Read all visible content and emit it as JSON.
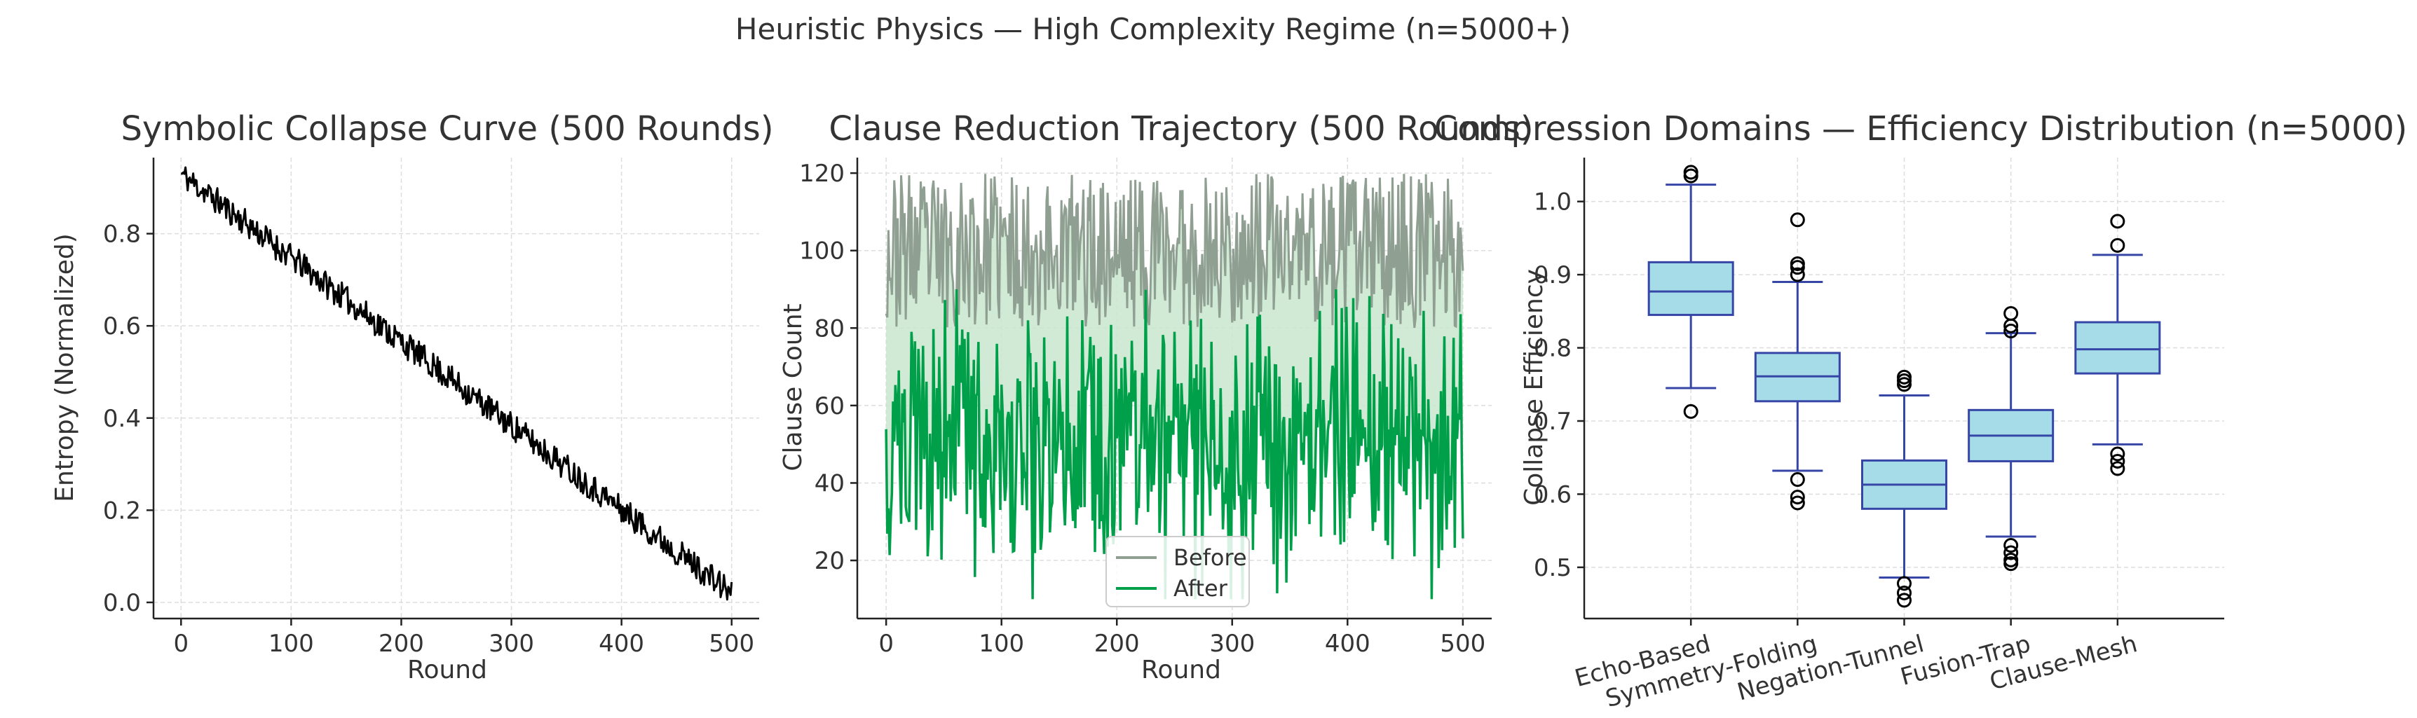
{
  "figure": {
    "suptitle": "Heuristic Physics — High Complexity Regime (n=5000+)"
  },
  "chart_data": [
    {
      "type": "line",
      "title": "Symbolic Collapse Curve (500 Rounds)",
      "xlabel": "Round",
      "ylabel": "Entropy (Normalized)",
      "xlim": [
        -25,
        525
      ],
      "ylim": [
        -0.035,
        0.965
      ],
      "xticks": [
        0,
        100,
        200,
        300,
        400,
        500
      ],
      "yticks": [
        0.0,
        0.2,
        0.4,
        0.6,
        0.8
      ],
      "ytick_labels": [
        "0.0",
        "0.2",
        "0.4",
        "0.6",
        "0.8"
      ],
      "grid": true,
      "series": [
        {
          "color": "#000000",
          "trend": {
            "x_start": 0,
            "x_end": 500,
            "y_start": 0.93,
            "y_end": 0.02
          },
          "noise_amplitude": 0.03,
          "points": 501
        }
      ]
    },
    {
      "type": "line",
      "title": "Clause Reduction Trajectory (500 Rounds)",
      "xlabel": "Round",
      "ylabel": "Clause Count",
      "xlim": [
        -25,
        525
      ],
      "ylim": [
        5,
        124
      ],
      "xticks": [
        0,
        100,
        200,
        300,
        400,
        500
      ],
      "yticks": [
        20,
        40,
        60,
        80,
        100,
        120
      ],
      "grid": true,
      "legend": "lower-center",
      "fill_between": {
        "color": "#c9e6cf"
      },
      "series": [
        {
          "name": "Before",
          "color": "#8f9f91",
          "range": [
            80,
            120
          ],
          "points": 501
        },
        {
          "name": "After",
          "color": "#00a04a",
          "range": [
            10,
            90
          ],
          "mean": 50,
          "points": 501
        }
      ]
    },
    {
      "type": "box",
      "title": "Compression Domains — Efficiency Distribution (n=5000)",
      "xlabel": "",
      "ylabel": "Collapse Efficiency",
      "ylim": [
        0.43,
        1.06
      ],
      "yticks": [
        0.5,
        0.6,
        0.7,
        0.8,
        0.9,
        1.0
      ],
      "ytick_labels": [
        "0.5",
        "0.6",
        "0.7",
        "0.8",
        "0.9",
        "1.0"
      ],
      "grid": true,
      "box_color": "#a6dbe8",
      "edge_color": "#3646a7",
      "categories": [
        "Echo-Based",
        "Symmetry-Folding",
        "Negation-Tunnel",
        "Fusion-Trap",
        "Clause-Mesh"
      ],
      "boxes": [
        {
          "whislo": 0.745,
          "q1": 0.845,
          "med": 0.877,
          "q3": 0.917,
          "whishi": 1.023,
          "fliers": [
            0.713,
            1.035,
            1.04
          ]
        },
        {
          "whislo": 0.632,
          "q1": 0.727,
          "med": 0.761,
          "q3": 0.793,
          "whishi": 0.89,
          "fliers": [
            0.588,
            0.596,
            0.62,
            0.9,
            0.91,
            0.915,
            0.975
          ]
        },
        {
          "whislo": 0.486,
          "q1": 0.58,
          "med": 0.613,
          "q3": 0.646,
          "whishi": 0.735,
          "fliers": [
            0.455,
            0.465,
            0.478,
            0.75,
            0.755,
            0.76
          ]
        },
        {
          "whislo": 0.542,
          "q1": 0.645,
          "med": 0.68,
          "q3": 0.715,
          "whishi": 0.82,
          "fliers": [
            0.505,
            0.51,
            0.52,
            0.53,
            0.823,
            0.83,
            0.847
          ]
        },
        {
          "whislo": 0.668,
          "q1": 0.765,
          "med": 0.798,
          "q3": 0.835,
          "whishi": 0.927,
          "fliers": [
            0.635,
            0.645,
            0.655,
            0.94,
            0.973
          ]
        }
      ]
    }
  ]
}
